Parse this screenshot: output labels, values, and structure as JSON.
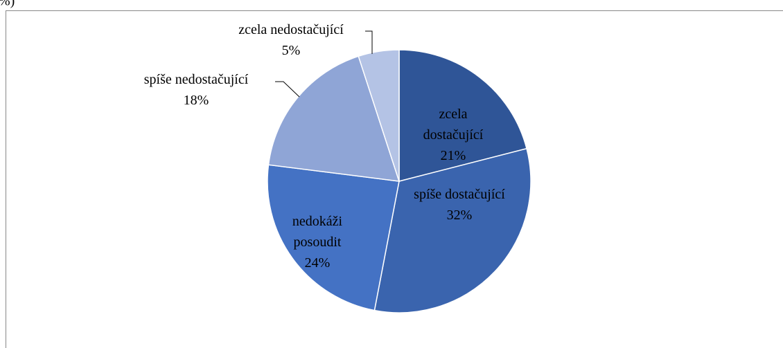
{
  "chart_data": {
    "type": "pie",
    "title": "%)",
    "categories": [
      "zcela dostačující",
      "spíše dostačující",
      "nedokáži posoudit",
      "spíše nedostačující",
      "zcela nedostačující"
    ],
    "values": [
      21,
      32,
      24,
      18,
      5
    ],
    "value_labels": [
      "21%",
      "32%",
      "24%",
      "18%",
      "5%"
    ],
    "colors": [
      "#2f5597",
      "#3a64ae",
      "#4472c4",
      "#8fa5d6",
      "#b4c3e5"
    ]
  }
}
